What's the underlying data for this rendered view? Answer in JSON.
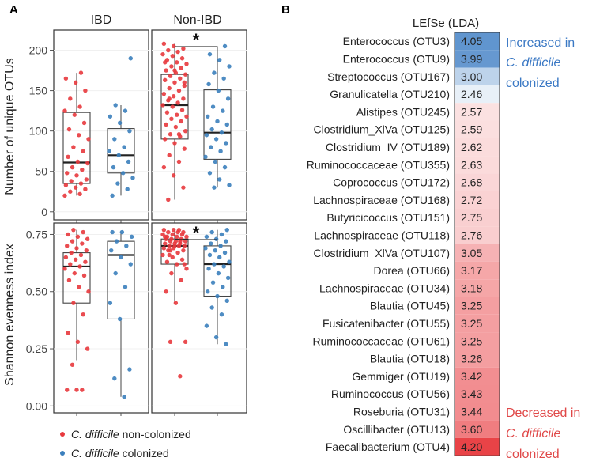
{
  "chart_data": [
    {
      "type": "boxplot",
      "panel_letter": "A",
      "facets": [
        "IBD",
        "Non-IBD"
      ],
      "groups": [
        "C. difficile non-colonized",
        "C. difficile colonized"
      ],
      "group_colors": [
        "#e8393d",
        "#3b7fbd"
      ],
      "legend": [
        {
          "prefix": "C. difficile",
          "suffix": " non-colonized",
          "color": "#e8393d"
        },
        {
          "prefix": "C. difficile",
          "suffix": " colonized",
          "color": "#3b7fbd"
        }
      ],
      "significance_marker": "*",
      "rows": [
        {
          "ylabel": "Number of unique OTUs",
          "ylim": [
            -10,
            225
          ],
          "yticks": [
            0,
            50,
            100,
            150,
            200
          ],
          "ytick_labels": [
            "0",
            "50",
            "100",
            "150",
            "200"
          ],
          "significant_facet": "Non-IBD",
          "boxes": {
            "IBD": [
              {
                "q1": 35,
                "median": 61,
                "q3": 123,
                "whisker_low": 20,
                "whisker_high": 172
              },
              {
                "q1": 48,
                "median": 70,
                "q3": 103,
                "whisker_low": 20,
                "whisker_high": 132
              }
            ],
            "Non-IBD": [
              {
                "q1": 90,
                "median": 132,
                "q3": 170,
                "whisker_low": 15,
                "whisker_high": 208
              },
              {
                "q1": 65,
                "median": 98,
                "q3": 151,
                "whisker_low": 30,
                "whisker_high": 205
              }
            ]
          },
          "points": {
            "IBD": [
              [
                20,
                22,
                25,
                28,
                30,
                33,
                35,
                38,
                40,
                45,
                48,
                52,
                55,
                60,
                62,
                68,
                75,
                80,
                90,
                95,
                102,
                110,
                120,
                125,
                130,
                140,
                150,
                160,
                165,
                172
              ],
              [
                20,
                28,
                35,
                42,
                48,
                55,
                62,
                70,
                75,
                80,
                90,
                100,
                110,
                118,
                125,
                132,
                190
              ]
            ],
            "Non-IBD": [
              [
                15,
                30,
                45,
                55,
                62,
                70,
                78,
                85,
                90,
                93,
                96,
                100,
                105,
                108,
                112,
                115,
                118,
                120,
                123,
                126,
                130,
                132,
                135,
                138,
                140,
                143,
                146,
                150,
                153,
                156,
                160,
                163,
                165,
                168,
                170,
                172,
                175,
                178,
                180,
                183,
                185,
                188,
                190,
                193,
                195,
                198,
                200,
                202,
                205,
                208,
                96,
                140,
                160,
                175,
                185
              ],
              [
                30,
                33,
                40,
                48,
                55,
                62,
                68,
                75,
                80,
                85,
                90,
                95,
                98,
                102,
                108,
                112,
                118,
                125,
                130,
                140,
                150,
                158,
                165,
                172,
                180,
                188,
                195,
                205
              ]
            ]
          }
        },
        {
          "ylabel": "Shannon evenness index",
          "ylim": [
            -0.03,
            0.8
          ],
          "yticks": [
            0.0,
            0.25,
            0.5,
            0.75
          ],
          "ytick_labels": [
            "0.00",
            "0.25",
            "0.50",
            "0.75"
          ],
          "significant_facet": "Non-IBD",
          "boxes": {
            "IBD": [
              {
                "q1": 0.45,
                "median": 0.61,
                "q3": 0.67,
                "whisker_low": 0.2,
                "whisker_high": 0.77
              },
              {
                "q1": 0.38,
                "median": 0.66,
                "q3": 0.72,
                "whisker_low": 0.04,
                "whisker_high": 0.76
              }
            ],
            "Non-IBD": [
              {
                "q1": 0.62,
                "median": 0.7,
                "q3": 0.73,
                "whisker_low": 0.45,
                "whisker_high": 0.77
              },
              {
                "q1": 0.48,
                "median": 0.62,
                "q3": 0.7,
                "whisker_low": 0.27,
                "whisker_high": 0.77
              }
            ]
          },
          "points": {
            "IBD": [
              [
                0.07,
                0.07,
                0.07,
                0.18,
                0.25,
                0.28,
                0.32,
                0.4,
                0.45,
                0.5,
                0.52,
                0.55,
                0.57,
                0.58,
                0.6,
                0.61,
                0.62,
                0.63,
                0.64,
                0.65,
                0.66,
                0.67,
                0.68,
                0.69,
                0.7,
                0.71,
                0.72,
                0.73,
                0.74,
                0.75,
                0.76,
                0.77
              ],
              [
                0.04,
                0.12,
                0.16,
                0.38,
                0.45,
                0.52,
                0.58,
                0.62,
                0.65,
                0.68,
                0.7,
                0.72,
                0.74,
                0.76,
                0.76
              ]
            ],
            "Non-IBD": [
              [
                0.13,
                0.28,
                0.28,
                0.45,
                0.5,
                0.55,
                0.58,
                0.6,
                0.62,
                0.63,
                0.64,
                0.65,
                0.66,
                0.67,
                0.68,
                0.68,
                0.69,
                0.69,
                0.7,
                0.7,
                0.7,
                0.71,
                0.71,
                0.71,
                0.72,
                0.72,
                0.72,
                0.73,
                0.73,
                0.73,
                0.74,
                0.74,
                0.74,
                0.75,
                0.75,
                0.75,
                0.76,
                0.76,
                0.76,
                0.77,
                0.77,
                0.77,
                0.66,
                0.62,
                0.7,
                0.74,
                0.72,
                0.68
              ],
              [
                0.27,
                0.3,
                0.35,
                0.4,
                0.43,
                0.46,
                0.48,
                0.5,
                0.52,
                0.54,
                0.56,
                0.58,
                0.6,
                0.61,
                0.62,
                0.63,
                0.65,
                0.66,
                0.67,
                0.68,
                0.69,
                0.7,
                0.71,
                0.72,
                0.73,
                0.74,
                0.75,
                0.76,
                0.77
              ]
            ]
          }
        }
      ]
    },
    {
      "type": "heatmap",
      "panel_letter": "B",
      "title": "LEfSe (LDA)",
      "labels": [
        "Enterococcus (OTU3)",
        "Enterococcus (OTU9)",
        "Streptococcus (OTU167)",
        "Granulicatella (OTU210)",
        "Alistipes (OTU245)",
        "Clostridium_XlVa (OTU125)",
        "Clostridium_IV (OTU189)",
        "Ruminococcaceae (OTU355)",
        "Coprococcus (OTU172)",
        "Lachnospiraceae (OTU168)",
        "Butyricicoccus (OTU151)",
        "Lachnospiraceae (OTU118)",
        "Clostridium_XlVa (OTU107)",
        "Dorea (OTU66)",
        "Lachnospiraceae (OTU34)",
        "Blautia (OTU45)",
        "Fusicatenibacter (OTU55)",
        "Ruminococcaceae (OTU61)",
        "Blautia (OTU18)",
        "Gemmiger (OTU19)",
        "Ruminococcus (OTU56)",
        "Roseburia (OTU31)",
        "Oscillibacter (OTU13)",
        "Faecalibacterium (OTU4)"
      ],
      "value_labels": [
        "4.05",
        "3.99",
        "3.00",
        "2.46",
        "2.57",
        "2.59",
        "2.62",
        "2.63",
        "2.68",
        "2.72",
        "2.75",
        "2.76",
        "3.05",
        "3.17",
        "3.18",
        "3.25",
        "3.25",
        "3.25",
        "3.26",
        "3.42",
        "3.43",
        "3.44",
        "3.60",
        "4.20"
      ],
      "values": [
        4.05,
        3.99,
        3.0,
        2.46,
        2.57,
        2.59,
        2.62,
        2.63,
        2.68,
        2.72,
        2.75,
        2.76,
        3.05,
        3.17,
        3.18,
        3.25,
        3.25,
        3.25,
        3.26,
        3.42,
        3.43,
        3.44,
        3.6,
        4.2
      ],
      "direction": [
        "increased",
        "increased",
        "increased",
        "increased",
        "decreased",
        "decreased",
        "decreased",
        "decreased",
        "decreased",
        "decreased",
        "decreased",
        "decreased",
        "decreased",
        "decreased",
        "decreased",
        "decreased",
        "decreased",
        "decreased",
        "decreased",
        "decreased",
        "decreased",
        "decreased",
        "decreased",
        "decreased"
      ],
      "increased_color": "#4a86c8",
      "decreased_color": "#e8393d",
      "annotations": {
        "increased": [
          "Increased in",
          "C. difficile",
          "colonized"
        ],
        "decreased": [
          "Decreased in",
          "C. difficile",
          "colonized"
        ]
      }
    }
  ]
}
